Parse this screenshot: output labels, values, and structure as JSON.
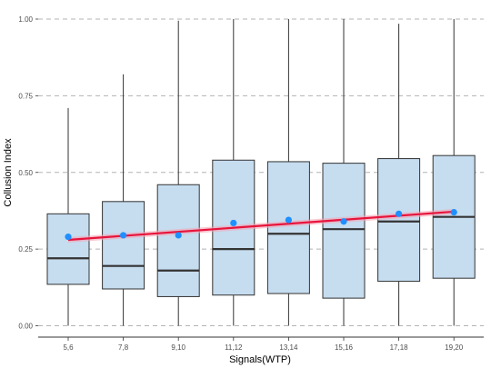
{
  "chart_data": {
    "type": "boxplot",
    "xlabel": "Signals(WTP)",
    "ylabel": "Collusion Index",
    "ylim": [
      0,
      1
    ],
    "yticks": [
      "0.00",
      "0.25",
      "0.50",
      "0.75",
      "1.00"
    ],
    "categories": [
      "5,6",
      "7,8",
      "9,10",
      "11,12",
      "13,14",
      "15,16",
      "17,18",
      "19,20"
    ],
    "boxes": [
      {
        "min": 0.0,
        "q1": 0.135,
        "median": 0.22,
        "q3": 0.365,
        "max": 0.71,
        "mean": 0.29
      },
      {
        "min": 0.0,
        "q1": 0.12,
        "median": 0.195,
        "q3": 0.405,
        "max": 0.82,
        "mean": 0.295
      },
      {
        "min": 0.0,
        "q1": 0.095,
        "median": 0.18,
        "q3": 0.46,
        "max": 0.995,
        "mean": 0.295
      },
      {
        "min": 0.0,
        "q1": 0.1,
        "median": 0.25,
        "q3": 0.54,
        "max": 1.0,
        "mean": 0.335
      },
      {
        "min": 0.0,
        "q1": 0.105,
        "median": 0.3,
        "q3": 0.535,
        "max": 1.0,
        "mean": 0.345
      },
      {
        "min": 0.0,
        "q1": 0.09,
        "median": 0.315,
        "q3": 0.53,
        "max": 1.0,
        "mean": 0.34
      },
      {
        "min": 0.0,
        "q1": 0.145,
        "median": 0.34,
        "q3": 0.545,
        "max": 0.985,
        "mean": 0.365
      },
      {
        "min": 0.0,
        "q1": 0.155,
        "median": 0.355,
        "q3": 0.555,
        "max": 1.0,
        "mean": 0.37
      }
    ],
    "trend_line": {
      "start": 0.28,
      "end": 0.372
    },
    "grid": "horizontal dashed",
    "colors": {
      "box_fill": "#c6dcef",
      "box_stroke": "#333333",
      "median": "#333333",
      "mean_point": "#1e90ff",
      "trend": "#e8143c",
      "trend_band": "#f4a6b6",
      "grid": "#b3b3b3"
    }
  }
}
